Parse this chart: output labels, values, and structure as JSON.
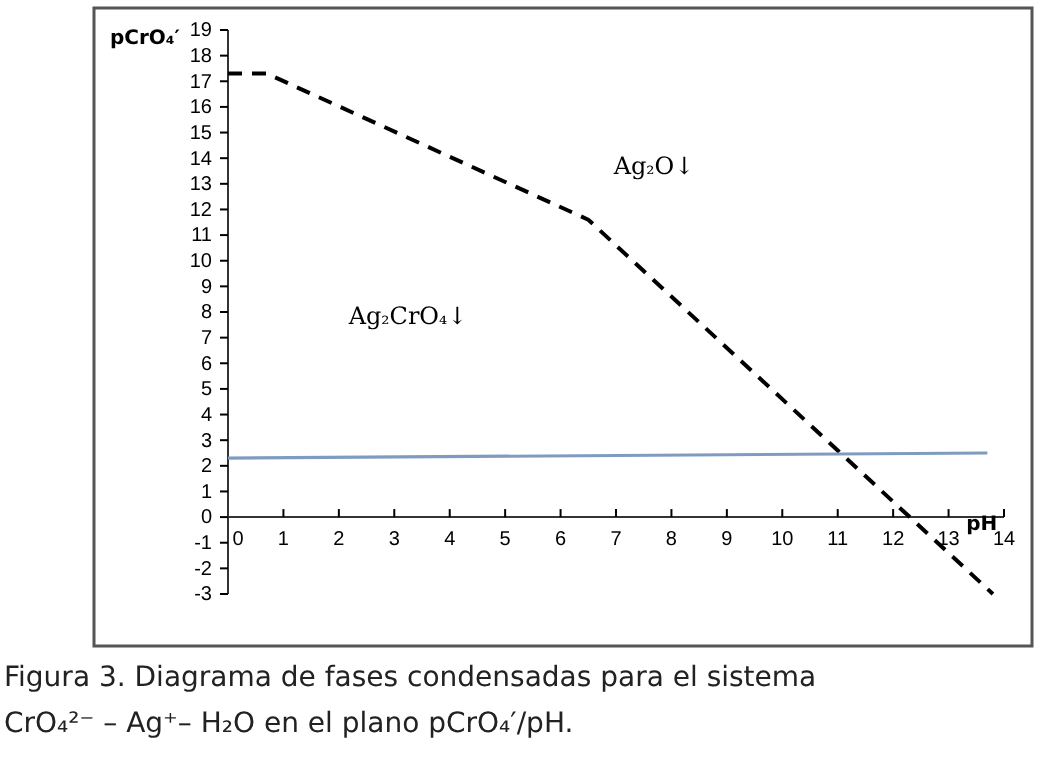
{
  "chart_data": {
    "type": "line",
    "ylabel": "pCrO₄′",
    "xlabel": "pH",
    "xlim": [
      0,
      14
    ],
    "ylim": [
      -3,
      19
    ],
    "xticks": [
      0,
      1,
      2,
      3,
      4,
      5,
      6,
      7,
      8,
      9,
      10,
      11,
      12,
      13,
      14
    ],
    "yticks": [
      -3,
      -2,
      -1,
      0,
      1,
      2,
      3,
      4,
      5,
      6,
      7,
      8,
      9,
      10,
      11,
      12,
      13,
      14,
      15,
      16,
      17,
      18,
      19
    ],
    "grid": false,
    "marker": "none",
    "series": [
      {
        "color": "#000000",
        "line_style": "dashed",
        "x": [
          0,
          0.7,
          6.5,
          12.3,
          13.8
        ],
        "values": [
          17.3,
          17.3,
          11.6,
          0,
          -3
        ]
      },
      {
        "color": "#7f9cc0",
        "line_style": "solid",
        "x": [
          0,
          13.7
        ],
        "values": [
          2.3,
          2.5
        ]
      }
    ],
    "annotations": [
      "Ag₂O↓",
      "Ag₂CrO₄↓",
      "Figura 3. Diagrama de fases condensadas para el sistema CrO₄²⁻ – Ag⁺– H₂O en el plano pCrO₄′/pH."
    ]
  }
}
